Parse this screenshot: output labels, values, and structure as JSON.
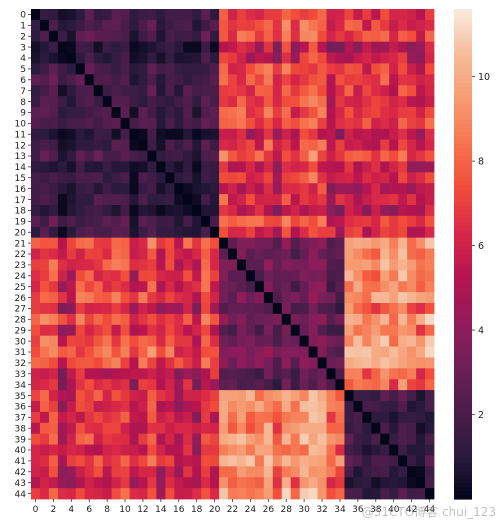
{
  "chart_data": {
    "type": "heatmap",
    "title": "",
    "xlabel": "",
    "ylabel": "",
    "n": 45,
    "clusters": [
      {
        "start": 0,
        "end": 20,
        "self": 1.2
      },
      {
        "start": 21,
        "end": 34,
        "self": 2.8
      },
      {
        "start": 35,
        "end": 44,
        "self": 1.5
      }
    ],
    "between_clusters": {
      "0-1": 6.4,
      "0-2": 5.9,
      "1-2": 8.9
    },
    "diagonal_value": 0,
    "x_tick_labels": [
      "0",
      "2",
      "4",
      "6",
      "8",
      "10",
      "12",
      "14",
      "16",
      "18",
      "20",
      "22",
      "24",
      "26",
      "28",
      "30",
      "32",
      "34",
      "36",
      "38",
      "40",
      "42",
      "44"
    ],
    "y_tick_labels": [
      "0",
      "1",
      "2",
      "3",
      "4",
      "5",
      "6",
      "7",
      "8",
      "9",
      "10",
      "11",
      "12",
      "13",
      "14",
      "15",
      "16",
      "17",
      "18",
      "19",
      "20",
      "21",
      "22",
      "23",
      "24",
      "25",
      "26",
      "27",
      "28",
      "29",
      "30",
      "31",
      "32",
      "33",
      "34",
      "35",
      "36",
      "37",
      "38",
      "39",
      "40",
      "41",
      "42",
      "43",
      "44"
    ],
    "colorbar": {
      "vmin": 0,
      "vmax": 11.6,
      "ticks": [
        2,
        4,
        6,
        8,
        10
      ],
      "tick_labels": [
        "2",
        "4",
        "6",
        "8",
        "10"
      ],
      "colormap": "rocket",
      "colors": [
        "#03051a",
        "#2b1b3e",
        "#4c1d4b",
        "#701f57",
        "#931c5a",
        "#b5144f",
        "#d92847",
        "#f14c3a",
        "#f6744f",
        "#f69b72",
        "#f6bc9b",
        "#faebdd"
      ]
    }
  },
  "watermark": "@51CTO博客 chui_123"
}
